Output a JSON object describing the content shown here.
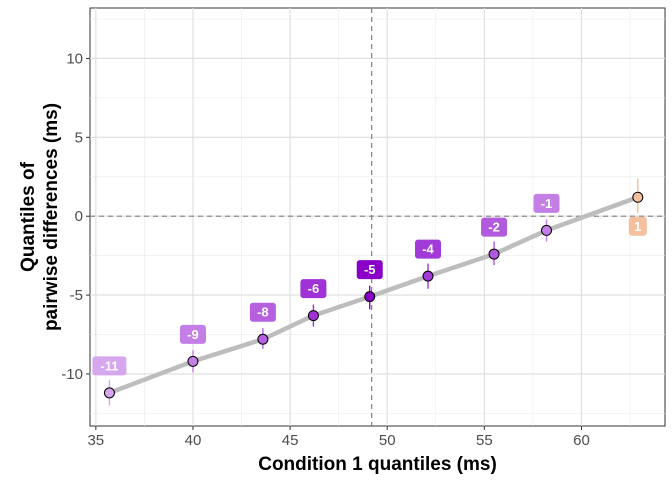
{
  "chart_data": {
    "type": "line",
    "xlabel": "Condition 1 quantiles (ms)",
    "ylabel_lines": [
      "Quantiles of",
      "pairwise differences (ms)"
    ],
    "xlim": [
      34.7,
      64.3
    ],
    "ylim": [
      -13.3,
      13.2
    ],
    "x_ticks": [
      35,
      40,
      45,
      50,
      55,
      60
    ],
    "y_ticks": [
      -10,
      -5,
      0,
      5,
      10
    ],
    "x_ref_line": 49.2,
    "y_ref_line": 0,
    "grid": true,
    "points": [
      {
        "x": 35.7,
        "y": -11.2,
        "lo": -12.0,
        "hi": -10.4,
        "label": "-11",
        "color": "#d6a6ee"
      },
      {
        "x": 40.0,
        "y": -9.2,
        "lo": -9.9,
        "hi": -8.5,
        "label": "-9",
        "color": "#c47fe6"
      },
      {
        "x": 43.6,
        "y": -7.8,
        "lo": -8.4,
        "hi": -7.1,
        "label": "-8",
        "color": "#b660e0"
      },
      {
        "x": 46.2,
        "y": -6.3,
        "lo": -7.0,
        "hi": -5.6,
        "label": "-6",
        "color": "#9f31d7"
      },
      {
        "x": 49.1,
        "y": -5.1,
        "lo": -5.9,
        "hi": -4.4,
        "label": "-5",
        "color": "#8a00c8"
      },
      {
        "x": 52.1,
        "y": -3.8,
        "lo": -4.6,
        "hi": -3.0,
        "label": "-4",
        "color": "#a13ad8"
      },
      {
        "x": 55.5,
        "y": -2.4,
        "lo": -3.1,
        "hi": -1.6,
        "label": "-2",
        "color": "#b25ade"
      },
      {
        "x": 58.2,
        "y": -0.9,
        "lo": -1.6,
        "hi": -0.2,
        "label": "-1",
        "color": "#c47fe6"
      },
      {
        "x": 62.9,
        "y": 1.2,
        "lo": 0.2,
        "hi": 2.4,
        "label": "1",
        "color": "#f4c09e"
      }
    ]
  }
}
